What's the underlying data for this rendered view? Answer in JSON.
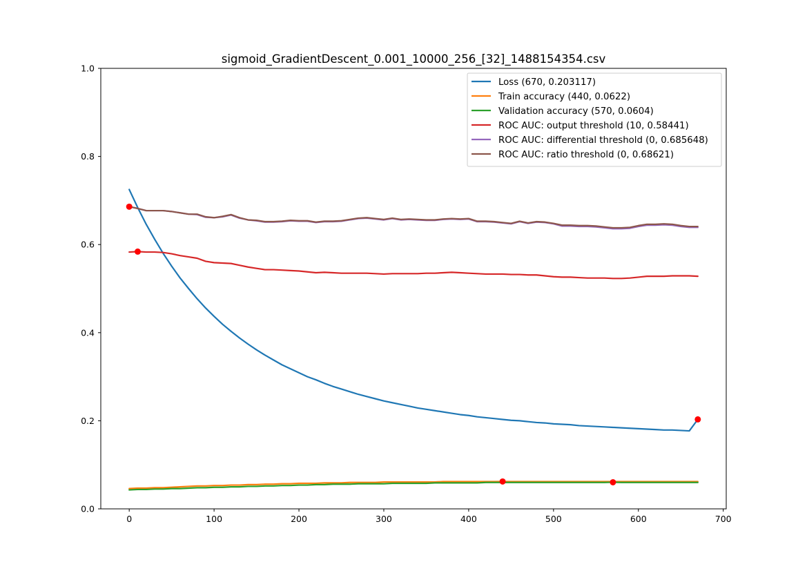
{
  "chart_data": {
    "type": "line",
    "title": "sigmoid_GradientDescent_0.001_10000_256_[32]_1488154354.csv",
    "xlabel": "",
    "ylabel": "",
    "xlim": [
      -33.5,
      703.5
    ],
    "ylim": [
      0,
      1
    ],
    "xticks": [
      0,
      100,
      200,
      300,
      400,
      500,
      600,
      700
    ],
    "yticks": [
      0.0,
      0.2,
      0.4,
      0.6,
      0.8,
      1.0
    ],
    "xtick_labels": [
      "0",
      "100",
      "200",
      "300",
      "400",
      "500",
      "600",
      "700"
    ],
    "ytick_labels": [
      "0.0",
      "0.2",
      "0.4",
      "0.6",
      "0.8",
      "1.0"
    ],
    "grid": false,
    "legend_position": "top-right",
    "x": [
      0,
      10,
      20,
      30,
      40,
      50,
      60,
      70,
      80,
      90,
      100,
      110,
      120,
      130,
      140,
      150,
      160,
      170,
      180,
      190,
      200,
      210,
      220,
      230,
      240,
      250,
      260,
      270,
      280,
      290,
      300,
      310,
      320,
      330,
      340,
      350,
      360,
      370,
      380,
      390,
      400,
      410,
      420,
      430,
      440,
      450,
      460,
      470,
      480,
      490,
      500,
      510,
      520,
      530,
      540,
      550,
      560,
      570,
      580,
      590,
      600,
      610,
      620,
      630,
      640,
      650,
      660,
      670
    ],
    "series": [
      {
        "name": "Loss (670, 0.203117)",
        "color": "#1f77b4",
        "values": [
          0.725,
          0.684,
          0.646,
          0.612,
          0.58,
          0.551,
          0.524,
          0.5,
          0.477,
          0.456,
          0.437,
          0.419,
          0.403,
          0.388,
          0.374,
          0.361,
          0.349,
          0.338,
          0.327,
          0.318,
          0.309,
          0.3,
          0.293,
          0.285,
          0.278,
          0.272,
          0.266,
          0.26,
          0.255,
          0.25,
          0.245,
          0.241,
          0.237,
          0.233,
          0.229,
          0.226,
          0.223,
          0.22,
          0.217,
          0.214,
          0.212,
          0.209,
          0.207,
          0.205,
          0.203,
          0.201,
          0.2,
          0.198,
          0.196,
          0.195,
          0.193,
          0.192,
          0.191,
          0.189,
          0.188,
          0.187,
          0.186,
          0.185,
          0.184,
          0.183,
          0.182,
          0.181,
          0.18,
          0.179,
          0.179,
          0.178,
          0.177,
          0.203
        ]
      },
      {
        "name": "Train accuracy (440, 0.0622)",
        "color": "#ff7f0e",
        "values": [
          0.046,
          0.047,
          0.047,
          0.048,
          0.048,
          0.049,
          0.05,
          0.051,
          0.052,
          0.052,
          0.053,
          0.053,
          0.054,
          0.054,
          0.055,
          0.055,
          0.056,
          0.056,
          0.057,
          0.057,
          0.058,
          0.058,
          0.058,
          0.059,
          0.059,
          0.059,
          0.06,
          0.06,
          0.06,
          0.06,
          0.061,
          0.061,
          0.061,
          0.061,
          0.061,
          0.061,
          0.061,
          0.062,
          0.062,
          0.062,
          0.062,
          0.062,
          0.062,
          0.062,
          0.0622,
          0.062,
          0.062,
          0.062,
          0.062,
          0.062,
          0.062,
          0.062,
          0.062,
          0.062,
          0.062,
          0.062,
          0.062,
          0.062,
          0.062,
          0.062,
          0.062,
          0.062,
          0.062,
          0.062,
          0.062,
          0.062,
          0.062,
          0.062
        ]
      },
      {
        "name": "Validation accuracy (570, 0.0604)",
        "color": "#2ca02c",
        "values": [
          0.043,
          0.044,
          0.044,
          0.045,
          0.045,
          0.046,
          0.046,
          0.047,
          0.048,
          0.048,
          0.049,
          0.049,
          0.05,
          0.05,
          0.051,
          0.051,
          0.052,
          0.052,
          0.053,
          0.053,
          0.054,
          0.054,
          0.055,
          0.055,
          0.056,
          0.056,
          0.056,
          0.057,
          0.057,
          0.057,
          0.057,
          0.058,
          0.058,
          0.058,
          0.058,
          0.058,
          0.059,
          0.059,
          0.059,
          0.059,
          0.059,
          0.059,
          0.06,
          0.06,
          0.06,
          0.06,
          0.06,
          0.06,
          0.06,
          0.06,
          0.06,
          0.06,
          0.06,
          0.06,
          0.06,
          0.06,
          0.06,
          0.0604,
          0.06,
          0.06,
          0.06,
          0.06,
          0.06,
          0.06,
          0.06,
          0.06,
          0.06,
          0.06
        ]
      },
      {
        "name": "ROC AUC: output threshold (10, 0.58441)",
        "color": "#d62728",
        "values": [
          0.583,
          0.584,
          0.583,
          0.583,
          0.582,
          0.579,
          0.575,
          0.572,
          0.569,
          0.562,
          0.559,
          0.558,
          0.557,
          0.553,
          0.549,
          0.546,
          0.543,
          0.543,
          0.542,
          0.541,
          0.54,
          0.538,
          0.536,
          0.537,
          0.536,
          0.535,
          0.535,
          0.535,
          0.535,
          0.534,
          0.533,
          0.534,
          0.534,
          0.534,
          0.534,
          0.535,
          0.535,
          0.536,
          0.537,
          0.536,
          0.535,
          0.534,
          0.533,
          0.533,
          0.533,
          0.532,
          0.532,
          0.531,
          0.531,
          0.529,
          0.527,
          0.526,
          0.526,
          0.525,
          0.524,
          0.524,
          0.524,
          0.523,
          0.523,
          0.524,
          0.526,
          0.528,
          0.528,
          0.528,
          0.529,
          0.529,
          0.529,
          0.528
        ]
      },
      {
        "name": "ROC AUC: differential threshold (0, 0.685648)",
        "color": "#9467bd",
        "values": [
          0.686,
          0.682,
          0.677,
          0.677,
          0.677,
          0.675,
          0.672,
          0.669,
          0.668,
          0.662,
          0.661,
          0.663,
          0.667,
          0.66,
          0.656,
          0.654,
          0.651,
          0.651,
          0.652,
          0.654,
          0.653,
          0.653,
          0.65,
          0.652,
          0.652,
          0.653,
          0.656,
          0.659,
          0.66,
          0.658,
          0.656,
          0.659,
          0.656,
          0.657,
          0.656,
          0.655,
          0.655,
          0.657,
          0.658,
          0.657,
          0.658,
          0.652,
          0.652,
          0.651,
          0.649,
          0.647,
          0.652,
          0.648,
          0.651,
          0.65,
          0.647,
          0.642,
          0.642,
          0.641,
          0.641,
          0.64,
          0.638,
          0.636,
          0.636,
          0.637,
          0.641,
          0.644,
          0.644,
          0.645,
          0.644,
          0.641,
          0.639,
          0.639
        ]
      },
      {
        "name": "ROC AUC: ratio threshold (0, 0.68621)",
        "color": "#8c564b",
        "values": [
          0.686,
          0.682,
          0.677,
          0.677,
          0.677,
          0.675,
          0.672,
          0.669,
          0.669,
          0.663,
          0.661,
          0.664,
          0.668,
          0.661,
          0.656,
          0.655,
          0.652,
          0.652,
          0.653,
          0.655,
          0.654,
          0.654,
          0.651,
          0.653,
          0.653,
          0.654,
          0.657,
          0.66,
          0.661,
          0.659,
          0.657,
          0.66,
          0.657,
          0.658,
          0.657,
          0.656,
          0.656,
          0.658,
          0.659,
          0.658,
          0.659,
          0.653,
          0.653,
          0.652,
          0.65,
          0.648,
          0.653,
          0.649,
          0.652,
          0.651,
          0.648,
          0.644,
          0.644,
          0.643,
          0.643,
          0.642,
          0.64,
          0.638,
          0.638,
          0.639,
          0.643,
          0.646,
          0.646,
          0.647,
          0.646,
          0.643,
          0.641,
          0.641
        ]
      }
    ],
    "markers": [
      {
        "x": 0,
        "y": 0.686,
        "color": "#ff0000"
      },
      {
        "x": 10,
        "y": 0.584,
        "color": "#ff0000"
      },
      {
        "x": 440,
        "y": 0.0622,
        "color": "#ff0000"
      },
      {
        "x": 570,
        "y": 0.0604,
        "color": "#ff0000"
      },
      {
        "x": 670,
        "y": 0.203117,
        "color": "#ff0000"
      }
    ]
  }
}
